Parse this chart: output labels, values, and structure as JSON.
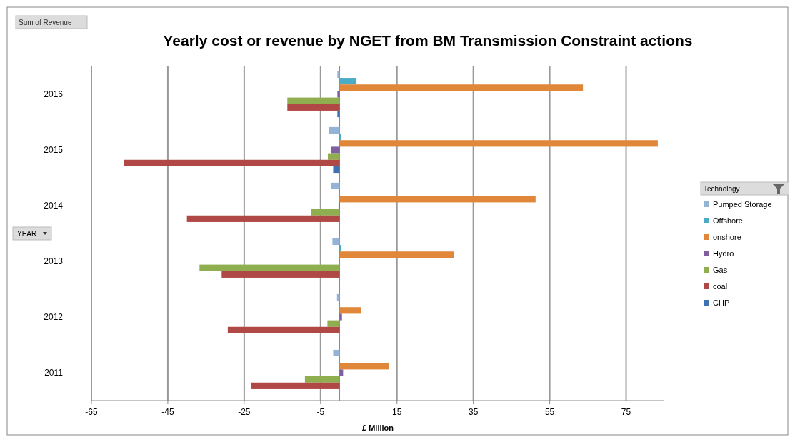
{
  "chart_data": {
    "type": "bar",
    "orientation": "horizontal",
    "title": "Yearly cost or revenue by NGET from BM Transmission Constraint actions",
    "xlabel": "£ Million",
    "ylabel": "YEAR",
    "legend_title": "Technology",
    "annotations": [
      "Sum of Revenue"
    ],
    "categories": [
      "2016",
      "2015",
      "2014",
      "2013",
      "2012",
      "2011"
    ],
    "xlim": [
      -65,
      85
    ],
    "xticks": [
      -65,
      -45,
      -25,
      -5,
      15,
      35,
      55,
      75
    ],
    "grid": "x",
    "legend": "right",
    "series": [
      {
        "name": "Pumped Storage",
        "color": "#95b3d7",
        "values": [
          -0.6,
          -2.8,
          -2.2,
          -1.9,
          -0.7,
          -1.7
        ]
      },
      {
        "name": "Offshore",
        "color": "#4bacc6",
        "values": [
          4.4,
          0.3,
          null,
          0.3,
          null,
          null
        ]
      },
      {
        "name": "onshore",
        "color": "#e0873a",
        "values": [
          63.7,
          83.3,
          51.3,
          30,
          5.6,
          12.8
        ]
      },
      {
        "name": "Hydro",
        "color": "#7f5fa0",
        "values": [
          -0.6,
          -2.3,
          -0.3,
          null,
          0.6,
          0.9
        ]
      },
      {
        "name": "Gas",
        "color": "#8fae4f",
        "values": [
          -13.7,
          -3.1,
          -7.4,
          -36.7,
          -3.2,
          -9.1
        ]
      },
      {
        "name": "coal",
        "color": "#b04945",
        "values": [
          -13.7,
          -56.5,
          -40,
          -30.9,
          -29.3,
          -23.1
        ]
      },
      {
        "name": "CHP",
        "color": "#3f72b0",
        "values": [
          -0.6,
          -1.7,
          null,
          null,
          null,
          null
        ]
      }
    ]
  }
}
